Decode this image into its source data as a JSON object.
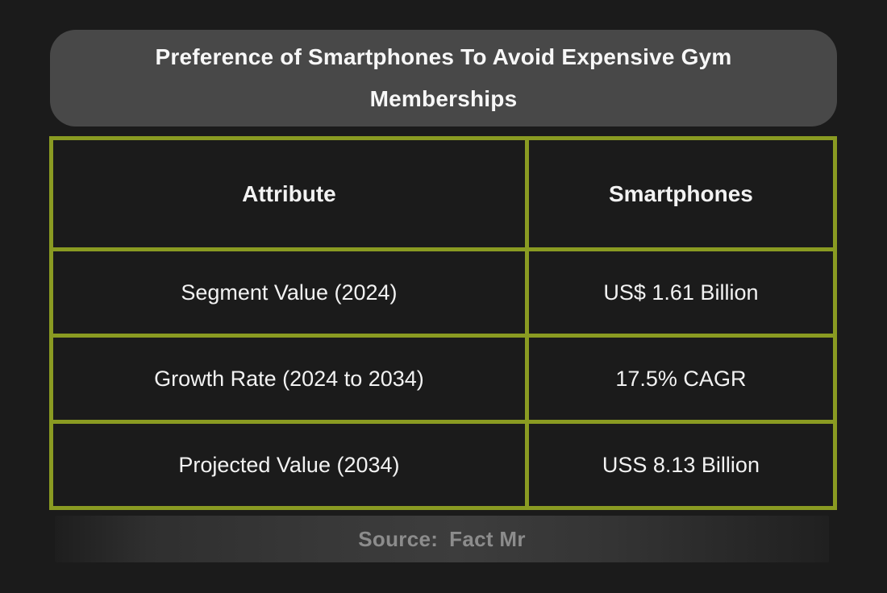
{
  "chart_data": {
    "type": "table",
    "title": "Preference of Smartphones To Avoid Expensive Gym Memberships",
    "columns": [
      "Attribute",
      "Smartphones"
    ],
    "rows": [
      [
        "Segment Value (2024)",
        "US$ 1.61 Billion"
      ],
      [
        "Growth Rate (2024 to 2034)",
        "17.5% CAGR"
      ],
      [
        "Projected Value (2034)",
        "USS 8.13 Billion"
      ]
    ],
    "source": "Fact Mr"
  },
  "footer": {
    "label": "Source:",
    "value": "Fact Mr"
  },
  "colors": {
    "page_background": "#1b1b1b",
    "title_banner_background": "#484848",
    "table_border": "#8a9b22",
    "cell_background": "#1b1b1b",
    "text_primary": "#f2f2f2",
    "source_text": "#8c8c8c",
    "source_band_center": "#3d3d3d"
  }
}
